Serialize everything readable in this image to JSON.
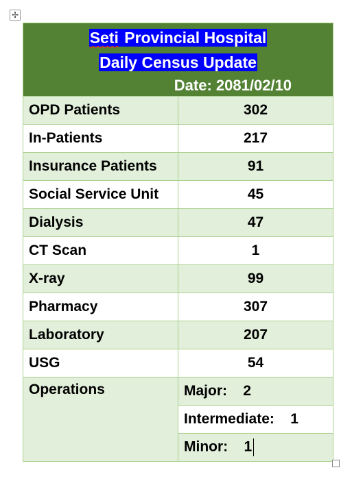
{
  "header": {
    "hospital_pre": "Seti",
    "hospital_rest": " Provincial Hospital",
    "subtitle": "Daily Census Update",
    "date": "Date: 2081/02/10"
  },
  "rows": [
    {
      "label": "OPD Patients",
      "value": "302"
    },
    {
      "label": "In-Patients",
      "value": "217"
    },
    {
      "label": "Insurance Patients",
      "value": "91"
    },
    {
      "label": "Social Service Unit",
      "value": "45"
    },
    {
      "label": "Dialysis",
      "value": "47"
    },
    {
      "label": "CT Scan",
      "value": "1"
    },
    {
      "label": "X-ray",
      "value": "99"
    },
    {
      "label": "Pharmacy",
      "value": "307"
    },
    {
      "label": "Laboratory",
      "value": "207"
    },
    {
      "label": "USG",
      "value": "54"
    }
  ],
  "operations": {
    "label": "Operations",
    "major": "Major:    2",
    "intermediate": "Intermediate:    1",
    "minor": "Minor:    1"
  },
  "colors": {
    "header_bg": "#548235",
    "highlight": "#0000ff",
    "row_alt": "#e2efda",
    "border": "#a9d08e"
  }
}
